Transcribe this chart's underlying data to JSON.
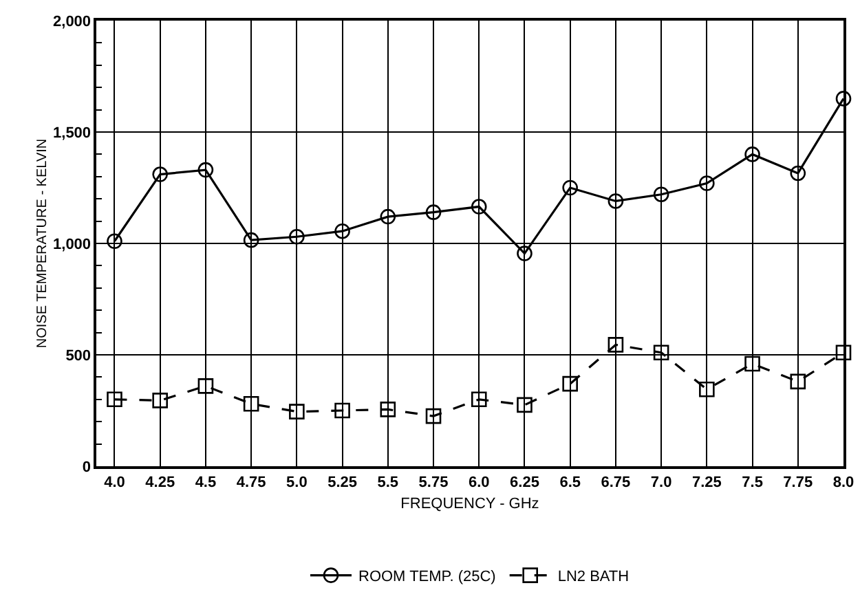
{
  "chart_data": {
    "type": "line",
    "xlabel": "FREQUENCY - GHz",
    "ylabel": "NOISE TEMPERATURE - KELVIN",
    "x": [
      4.0,
      4.25,
      4.5,
      4.75,
      5.0,
      5.25,
      5.5,
      5.75,
      6.0,
      6.25,
      6.5,
      6.75,
      7.0,
      7.25,
      7.5,
      7.75,
      8.0
    ],
    "series": [
      {
        "name": "ROOM TEMP. (25C)",
        "color": "#000000",
        "marker": "circle",
        "line_style": "solid",
        "values": [
          1010,
          1310,
          1330,
          1015,
          1030,
          1055,
          1120,
          1140,
          1165,
          955,
          1250,
          1190,
          1220,
          1270,
          1400,
          1315,
          1650
        ]
      },
      {
        "name": "LN2 BATH",
        "color": "#000000",
        "marker": "square",
        "line_style": "dashed",
        "values": [
          300,
          295,
          360,
          280,
          245,
          250,
          255,
          225,
          300,
          275,
          370,
          545,
          510,
          345,
          460,
          380,
          510
        ]
      }
    ],
    "xlim": [
      3.9,
      8.0
    ],
    "xticks": [
      {
        "value": 4.0,
        "label": "4.0"
      },
      4.25,
      4.5,
      4.75,
      {
        "value": 5.0,
        "label": "5.0"
      },
      5.25,
      5.5,
      5.75,
      {
        "value": 6.0,
        "label": "6.0"
      },
      6.25,
      6.5,
      6.75,
      {
        "value": 7.0,
        "label": "7.0"
      },
      7.25,
      7.5,
      7.75,
      {
        "value": 8.0,
        "label": "8.0"
      }
    ],
    "ylim": [
      0,
      2000
    ],
    "yticks": [
      0,
      500,
      {
        "value": 1000,
        "label": "1,000"
      },
      {
        "value": 1500,
        "label": "1,500"
      },
      {
        "value": 2000,
        "label": "2,000"
      }
    ],
    "grid": true,
    "legend": "bottom"
  }
}
